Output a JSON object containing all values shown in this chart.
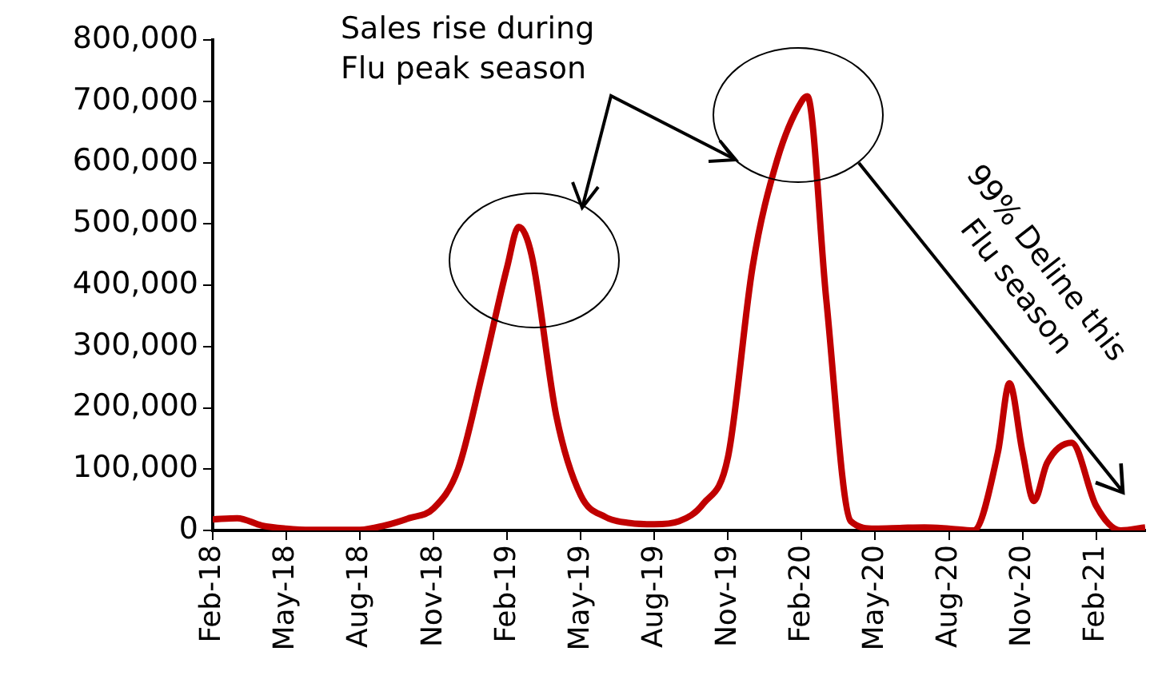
{
  "chart_data": {
    "type": "line",
    "x": [
      "2018-02",
      "2018-03",
      "2018-04",
      "2018-05",
      "2018-06",
      "2018-07",
      "2018-08",
      "2018-09",
      "2018-10",
      "2018-11",
      "2018-12",
      "2019-01",
      "2019-02",
      "2019-02-15",
      "2019-03",
      "2019-04",
      "2019-05",
      "2019-06",
      "2019-07",
      "2019-08",
      "2019-09",
      "2019-10",
      "2019-11",
      "2019-12",
      "2020-01",
      "2020-02",
      "2020-02-08",
      "2020-03",
      "2020-04",
      "2020-05",
      "2020-06",
      "2020-07",
      "2020-08",
      "2020-09",
      "2020-10",
      "2020-10-15",
      "2020-11",
      "2020-11-15",
      "2020-12",
      "2021-01",
      "2021-02",
      "2021-03",
      "2021-04"
    ],
    "series": [
      {
        "color": "#c00000",
        "values": [
          18000,
          20000,
          8000,
          3000,
          1000,
          1000,
          1000,
          8000,
          20000,
          36000,
          100000,
          258000,
          430000,
          495000,
          448000,
          187000,
          57000,
          22000,
          12000,
          10000,
          15000,
          44000,
          120000,
          430000,
          604000,
          700000,
          708000,
          378000,
          15000,
          3000,
          4000,
          5000,
          3000,
          0,
          128000,
          240000,
          128000,
          48000,
          110000,
          143000,
          40000,
          0,
          5000
        ]
      }
    ],
    "xlim": [
      "2018-02",
      "2021-04"
    ],
    "xticks": [
      {
        "value": "2018-02",
        "label": "Feb-18"
      },
      {
        "value": "2018-05",
        "label": "May-18"
      },
      {
        "value": "2018-08",
        "label": "Aug-18"
      },
      {
        "value": "2018-11",
        "label": "Nov-18"
      },
      {
        "value": "2019-02",
        "label": "Feb-19"
      },
      {
        "value": "2019-05",
        "label": "May-19"
      },
      {
        "value": "2019-08",
        "label": "Aug-19"
      },
      {
        "value": "2019-11",
        "label": "Nov-19"
      },
      {
        "value": "2020-02",
        "label": "Feb-20"
      },
      {
        "value": "2020-05",
        "label": "May-20"
      },
      {
        "value": "2020-08",
        "label": "Aug-20"
      },
      {
        "value": "2020-11",
        "label": "Nov-20"
      },
      {
        "value": "2021-02",
        "label": "Feb-21"
      }
    ],
    "ylim": [
      0,
      800000
    ],
    "yticks": [
      {
        "value": 0,
        "label": "0"
      },
      {
        "value": 100000,
        "label": "100,000"
      },
      {
        "value": 200000,
        "label": "200,000"
      },
      {
        "value": 300000,
        "label": "300,000"
      },
      {
        "value": 400000,
        "label": "400,000"
      },
      {
        "value": 500000,
        "label": "500,000"
      },
      {
        "value": 600000,
        "label": "600,000"
      },
      {
        "value": 700000,
        "label": "700,000"
      },
      {
        "value": 800000,
        "label": "800,000"
      }
    ],
    "grid": false,
    "line_style": "solid",
    "annotations": [
      "Sales rise during Flu peak season",
      "99% Deline this Flu season"
    ]
  }
}
